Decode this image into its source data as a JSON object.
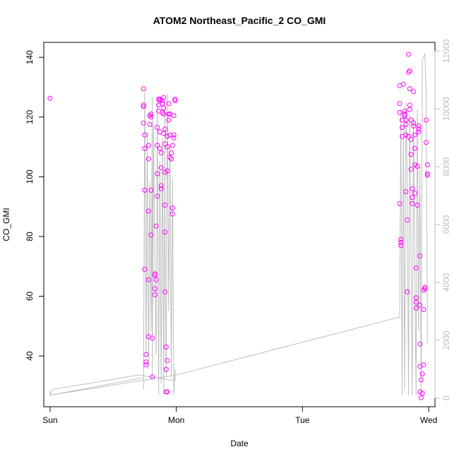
{
  "chart_data": {
    "type": "scatter",
    "title": "ATOM2 Northeast_Pacific_2 CO_GMI",
    "xlabel": "Date",
    "ylabel": "CO_GMI",
    "x_ticks": [
      {
        "pos": 0,
        "label": "Sun"
      },
      {
        "pos": 1,
        "label": "Mon"
      },
      {
        "pos": 2,
        "label": "Tue"
      },
      {
        "pos": 3,
        "label": "Wed"
      }
    ],
    "xlim": [
      -0.05,
      3.05
    ],
    "ylim": [
      23,
      145
    ],
    "y_ticks": [
      40,
      60,
      80,
      100,
      120,
      140
    ],
    "y2lim": [
      -300,
      12300
    ],
    "y2_ticks": [
      0,
      2000,
      4000,
      6000,
      8000,
      10000,
      12000
    ],
    "colors": {
      "points": "#ff00ff",
      "line": "#bebebe",
      "axis": "#000000"
    },
    "series": [
      {
        "type": "scatter",
        "axis": "left",
        "points": [
          [
            0.0,
            126.3
          ],
          [
            0.74,
            129.5
          ],
          [
            0.74,
            124
          ],
          [
            0.74,
            123.5
          ],
          [
            0.74,
            118
          ],
          [
            0.75,
            114
          ],
          [
            0.75,
            109.5
          ],
          [
            0.75,
            95.5
          ],
          [
            0.75,
            69
          ],
          [
            0.76,
            40.5
          ],
          [
            0.76,
            38
          ],
          [
            0.76,
            37
          ],
          [
            0.78,
            110.5
          ],
          [
            0.78,
            106
          ],
          [
            0.78,
            88.5
          ],
          [
            0.78,
            65.5
          ],
          [
            0.78,
            46.5
          ],
          [
            0.79,
            120.5
          ],
          [
            0.79,
            117.5
          ],
          [
            0.8,
            121
          ],
          [
            0.8,
            120
          ],
          [
            0.8,
            95.5
          ],
          [
            0.8,
            80.5
          ],
          [
            0.81,
            46
          ],
          [
            0.81,
            33
          ],
          [
            0.83,
            67.5
          ],
          [
            0.83,
            67
          ],
          [
            0.83,
            62.5
          ],
          [
            0.83,
            60.5
          ],
          [
            0.84,
            65.5
          ],
          [
            0.84,
            83.5
          ],
          [
            0.85,
            93.5
          ],
          [
            0.85,
            101
          ],
          [
            0.85,
            110.5
          ],
          [
            0.85,
            116.5
          ],
          [
            0.86,
            124
          ],
          [
            0.86,
            126
          ],
          [
            0.86,
            122
          ],
          [
            0.87,
            125.5
          ],
          [
            0.87,
            126
          ],
          [
            0.87,
            115
          ],
          [
            0.87,
            109.5
          ],
          [
            0.88,
            103
          ],
          [
            0.88,
            97
          ],
          [
            0.88,
            96
          ],
          [
            0.88,
            108
          ],
          [
            0.89,
            121.5
          ],
          [
            0.89,
            124.5
          ],
          [
            0.89,
            125.5
          ],
          [
            0.9,
            123
          ],
          [
            0.9,
            126.5
          ],
          [
            0.9,
            121
          ],
          [
            0.9,
            114.5
          ],
          [
            0.91,
            116
          ],
          [
            0.91,
            111
          ],
          [
            0.91,
            101.5
          ],
          [
            0.91,
            90.5
          ],
          [
            0.91,
            81.5
          ],
          [
            0.91,
            61.5
          ],
          [
            0.92,
            43
          ],
          [
            0.92,
            35.5
          ],
          [
            0.92,
            28
          ],
          [
            0.93,
            28
          ],
          [
            0.93,
            38.5
          ],
          [
            0.93,
            102
          ],
          [
            0.93,
            110
          ],
          [
            0.93,
            113.5
          ],
          [
            0.94,
            119
          ],
          [
            0.94,
            121
          ],
          [
            0.94,
            124.5
          ],
          [
            0.95,
            121
          ],
          [
            0.95,
            114
          ],
          [
            0.95,
            106.5
          ],
          [
            0.96,
            106
          ],
          [
            0.96,
            108
          ],
          [
            0.97,
            89.5
          ],
          [
            0.97,
            87.5
          ],
          [
            0.97,
            110.5
          ],
          [
            0.98,
            113
          ],
          [
            0.98,
            114
          ],
          [
            0.98,
            120.5
          ],
          [
            0.99,
            125.5
          ],
          [
            0.99,
            126
          ],
          [
            2.77,
            130.5
          ],
          [
            2.77,
            124.5
          ],
          [
            2.77,
            121.5
          ],
          [
            2.77,
            91
          ],
          [
            2.78,
            79
          ],
          [
            2.78,
            78
          ],
          [
            2.78,
            77
          ],
          [
            2.79,
            119
          ],
          [
            2.79,
            116.5
          ],
          [
            2.79,
            113.5
          ],
          [
            2.8,
            131
          ],
          [
            2.81,
            121
          ],
          [
            2.81,
            122
          ],
          [
            2.81,
            120.5
          ],
          [
            2.82,
            119
          ],
          [
            2.82,
            117.5
          ],
          [
            2.82,
            114
          ],
          [
            2.82,
            95
          ],
          [
            2.83,
            85.5
          ],
          [
            2.83,
            61.5
          ],
          [
            2.83,
            61.5
          ],
          [
            2.84,
            135
          ],
          [
            2.84,
            141
          ],
          [
            2.84,
            113.5
          ],
          [
            2.85,
            135.5
          ],
          [
            2.85,
            129.5
          ],
          [
            2.85,
            124
          ],
          [
            2.85,
            122.5
          ],
          [
            2.86,
            119
          ],
          [
            2.86,
            112.5
          ],
          [
            2.86,
            107.5
          ],
          [
            2.86,
            102.5
          ],
          [
            2.87,
            96
          ],
          [
            2.87,
            93
          ],
          [
            2.87,
            91
          ],
          [
            2.88,
            128.5
          ],
          [
            2.88,
            118
          ],
          [
            2.88,
            117
          ],
          [
            2.89,
            114
          ],
          [
            2.89,
            109.5
          ],
          [
            2.89,
            104
          ],
          [
            2.89,
            94.5
          ],
          [
            2.9,
            59.5
          ],
          [
            2.9,
            58
          ],
          [
            2.9,
            56
          ],
          [
            2.9,
            69.5
          ],
          [
            2.91,
            90.5
          ],
          [
            2.91,
            103.5
          ],
          [
            2.92,
            117
          ],
          [
            2.92,
            115
          ],
          [
            2.92,
            116
          ],
          [
            2.93,
            73.5
          ],
          [
            2.93,
            57
          ],
          [
            2.93,
            44
          ],
          [
            2.93,
            36.5
          ],
          [
            2.93,
            28
          ],
          [
            2.94,
            26
          ],
          [
            2.94,
            32
          ],
          [
            2.95,
            27.5
          ],
          [
            2.95,
            34
          ],
          [
            2.96,
            37
          ],
          [
            2.96,
            55.5
          ],
          [
            2.96,
            62
          ],
          [
            2.97,
            62.5
          ],
          [
            2.97,
            63
          ],
          [
            2.98,
            111.5
          ],
          [
            2.98,
            119
          ],
          [
            2.99,
            104
          ],
          [
            2.99,
            101
          ],
          [
            2.99,
            100.5
          ]
        ]
      },
      {
        "type": "line",
        "axis": "right",
        "points": [
          [
            0.0,
            300
          ],
          [
            0.0,
            100
          ],
          [
            0.74,
            700
          ],
          [
            0.74,
            300
          ],
          [
            0.75,
            10600
          ],
          [
            0.76,
            1500
          ],
          [
            0.77,
            9200
          ],
          [
            0.78,
            1000
          ],
          [
            0.79,
            7500
          ],
          [
            0.8,
            2300
          ],
          [
            0.81,
            10400
          ],
          [
            0.81,
            700
          ],
          [
            0.82,
            9500
          ],
          [
            0.83,
            4200
          ],
          [
            0.84,
            1500
          ],
          [
            0.85,
            10200
          ],
          [
            0.86,
            100
          ],
          [
            0.87,
            8200
          ],
          [
            0.88,
            500
          ],
          [
            0.89,
            9000
          ],
          [
            0.9,
            100
          ],
          [
            0.91,
            10200
          ],
          [
            0.91,
            6000
          ],
          [
            0.92,
            700
          ],
          [
            0.93,
            10500
          ],
          [
            0.94,
            3000
          ],
          [
            0.95,
            8700
          ],
          [
            0.96,
            700
          ],
          [
            0.97,
            7600
          ],
          [
            0.98,
            100
          ],
          [
            0.99,
            1000
          ],
          [
            0.99,
            600
          ],
          [
            0.7,
            800
          ],
          [
            0.3,
            500
          ],
          [
            0.02,
            300
          ],
          [
            0.0,
            100
          ],
          [
            1.0,
            800
          ],
          [
            2.77,
            2800
          ],
          [
            2.78,
            10000
          ],
          [
            2.79,
            100
          ],
          [
            2.8,
            9400
          ],
          [
            2.81,
            300
          ],
          [
            2.82,
            10200
          ],
          [
            2.83,
            7500
          ],
          [
            2.84,
            100
          ],
          [
            2.85,
            9800
          ],
          [
            2.86,
            5000
          ],
          [
            2.87,
            100
          ],
          [
            2.88,
            9700
          ],
          [
            2.89,
            4500
          ],
          [
            2.9,
            100
          ],
          [
            2.91,
            10000
          ],
          [
            2.92,
            2300
          ],
          [
            2.93,
            8000
          ],
          [
            2.94,
            200
          ],
          [
            2.95,
            11700
          ],
          [
            2.97,
            11900
          ],
          [
            2.98,
            10500
          ],
          [
            2.99,
            1900
          ]
        ]
      }
    ]
  }
}
